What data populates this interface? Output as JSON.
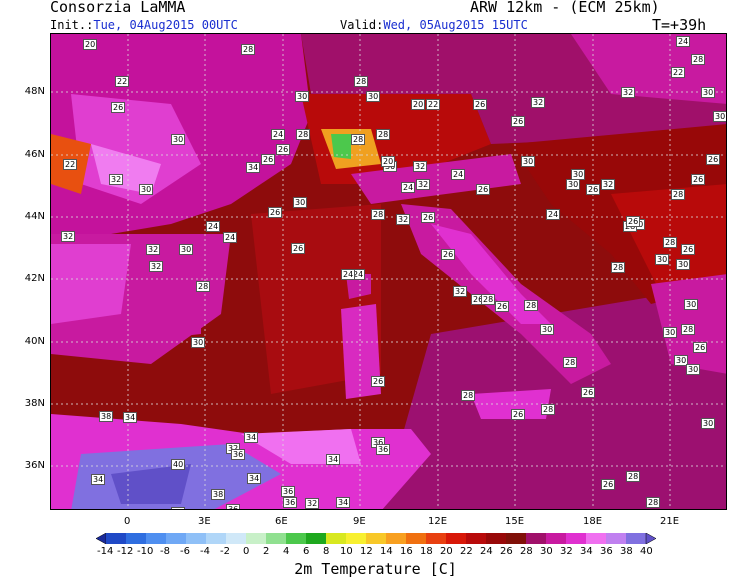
{
  "header": {
    "org": "Consorzia LaMMA",
    "model": "ARW 12km - (ECM 25km)",
    "init_label": "Init.:",
    "init_value": "Tue, 04Aug2015 00UTC",
    "valid_label": "Valid:",
    "valid_value": "Wed, 05Aug2015 15UTC",
    "lead": "T=+39h"
  },
  "axes": {
    "lat_labels": [
      "48N",
      "46N",
      "44N",
      "42N",
      "40N",
      "38N",
      "36N"
    ],
    "lon_labels": [
      "0",
      "3E",
      "6E",
      "9E",
      "12E",
      "15E",
      "18E",
      "21E"
    ]
  },
  "colorbar": {
    "ticks": [
      "-14",
      "-12",
      "-10",
      "-8",
      "-6",
      "-4",
      "-2",
      "0",
      "2",
      "4",
      "6",
      "8",
      "10",
      "12",
      "14",
      "16",
      "18",
      "20",
      "22",
      "24",
      "26",
      "28",
      "30",
      "32",
      "34",
      "36",
      "38",
      "40"
    ],
    "colors": [
      "#1a2a9a",
      "#1f49c6",
      "#2f6ee0",
      "#4f8ff0",
      "#6fa8f5",
      "#8fc0f7",
      "#b0d6f8",
      "#d0e8f8",
      "#c8f0c8",
      "#90e090",
      "#4cc84c",
      "#1ea81e",
      "#d8e820",
      "#f8f030",
      "#f8c828",
      "#f8a020",
      "#f07010",
      "#e84010",
      "#d81808",
      "#b80a0a",
      "#980808",
      "#801008",
      "#a0106a",
      "#c81aa0",
      "#e030d0",
      "#f070f0",
      "#c080f0",
      "#8070e0",
      "#6050c8"
    ],
    "caption": "2m Temperature [C]"
  },
  "stations": [
    {
      "v": "20"
    },
    {
      "v": "28"
    },
    {
      "v": "24"
    },
    {
      "v": "28"
    },
    {
      "v": "22"
    },
    {
      "v": "28"
    },
    {
      "v": "22"
    },
    {
      "v": "32"
    },
    {
      "v": "30"
    },
    {
      "v": "26"
    },
    {
      "v": "30"
    },
    {
      "v": "30"
    },
    {
      "v": "20"
    },
    {
      "v": "26"
    },
    {
      "v": "32"
    },
    {
      "v": "30"
    },
    {
      "v": "26"
    },
    {
      "v": "28"
    },
    {
      "v": "22"
    },
    {
      "v": "28"
    },
    {
      "v": "22"
    },
    {
      "v": "24"
    },
    {
      "v": "30"
    },
    {
      "v": "26"
    },
    {
      "v": "26"
    },
    {
      "v": "28"
    },
    {
      "v": "30"
    },
    {
      "v": "34"
    },
    {
      "v": "20"
    },
    {
      "v": "32"
    },
    {
      "v": "30"
    },
    {
      "v": "26"
    },
    {
      "v": "32"
    },
    {
      "v": "32"
    },
    {
      "v": "24"
    },
    {
      "v": "26"
    },
    {
      "v": "30"
    },
    {
      "v": "32"
    },
    {
      "v": "24"
    },
    {
      "v": "28"
    },
    {
      "v": "30"
    },
    {
      "v": "26"
    },
    {
      "v": "24"
    },
    {
      "v": "30"
    },
    {
      "v": "30"
    },
    {
      "v": "24"
    },
    {
      "v": "32"
    },
    {
      "v": "28"
    },
    {
      "v": "32"
    },
    {
      "v": "26"
    },
    {
      "v": "26"
    },
    {
      "v": "26"
    },
    {
      "v": "32"
    },
    {
      "v": "30"
    },
    {
      "v": "24"
    },
    {
      "v": "26"
    },
    {
      "v": "24"
    },
    {
      "v": "30"
    },
    {
      "v": "28"
    },
    {
      "v": "26"
    },
    {
      "v": "32"
    },
    {
      "v": "28"
    },
    {
      "v": "26"
    },
    {
      "v": "30"
    },
    {
      "v": "30"
    },
    {
      "v": "28"
    },
    {
      "v": "30"
    },
    {
      "v": "26"
    },
    {
      "v": "28"
    },
    {
      "v": "26"
    },
    {
      "v": "30"
    },
    {
      "v": "24"
    },
    {
      "v": "32"
    },
    {
      "v": "28"
    },
    {
      "v": "26"
    },
    {
      "v": "28"
    },
    {
      "v": "30"
    },
    {
      "v": "30"
    },
    {
      "v": "26"
    },
    {
      "v": "34"
    },
    {
      "v": "38"
    },
    {
      "v": "34"
    },
    {
      "v": "36"
    },
    {
      "v": "32"
    },
    {
      "v": "36"
    },
    {
      "v": "40"
    },
    {
      "v": "34"
    },
    {
      "v": "36"
    },
    {
      "v": "38"
    },
    {
      "v": "36"
    },
    {
      "v": "34"
    },
    {
      "v": "32"
    },
    {
      "v": "34"
    },
    {
      "v": "36"
    },
    {
      "v": "36"
    },
    {
      "v": "34"
    },
    {
      "v": "38"
    },
    {
      "v": "28"
    },
    {
      "v": "28"
    },
    {
      "v": "26"
    },
    {
      "v": "26"
    },
    {
      "v": "28"
    },
    {
      "v": "28"
    },
    {
      "v": "26"
    },
    {
      "v": "28"
    },
    {
      "v": "30"
    },
    {
      "v": "30"
    },
    {
      "v": "26"
    },
    {
      "v": "28"
    },
    {
      "v": "30"
    }
  ]
}
